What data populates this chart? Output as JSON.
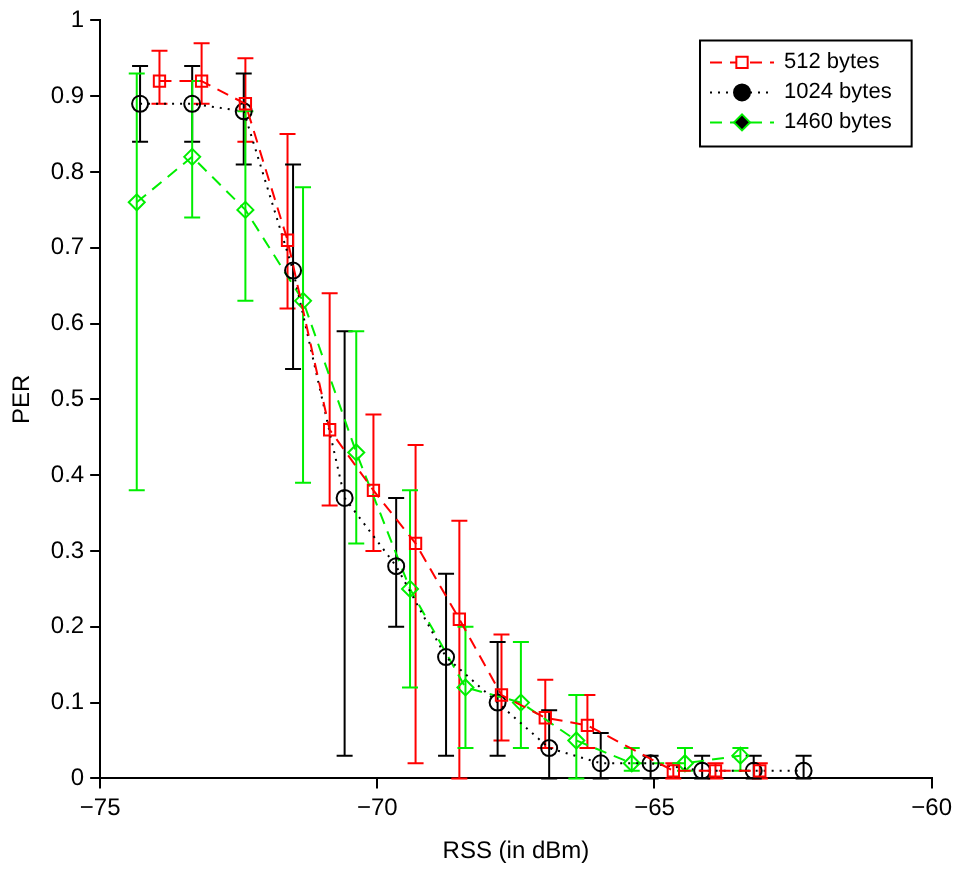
{
  "chart_data": {
    "type": "line",
    "xlabel": "RSS (in dBm)",
    "ylabel": "PER",
    "xlim": [
      -75,
      -60
    ],
    "ylim": [
      0,
      1
    ],
    "xticks": [
      -75,
      -70,
      -65,
      -60
    ],
    "yticks": [
      0,
      0.1,
      0.2,
      0.3,
      0.4,
      0.5,
      0.6,
      0.7,
      0.8,
      0.9,
      1
    ],
    "grid": false,
    "legend": "top right",
    "series": [
      {
        "name": "512 bytes",
        "color": "#ff0000",
        "marker": "square",
        "line_style": "dashed",
        "x": [
          -73.93,
          -73.17,
          -72.38,
          -71.62,
          -70.86,
          -70.07,
          -69.31,
          -68.52,
          -67.76,
          -66.97,
          -66.21,
          -64.66,
          -63.9,
          -63.1
        ],
        "values": [
          0.92,
          0.92,
          0.89,
          0.71,
          0.46,
          0.38,
          0.31,
          0.21,
          0.11,
          0.08,
          0.07,
          0.01,
          0.01,
          0.01
        ],
        "errors": [
          [
            0.89,
            0.96
          ],
          [
            0.89,
            0.97
          ],
          [
            0.84,
            0.95
          ],
          [
            0.62,
            0.85
          ],
          [
            0.36,
            0.64
          ],
          [
            0.3,
            0.48
          ],
          [
            0.02,
            0.44
          ],
          [
            0,
            0.34
          ],
          [
            0.05,
            0.19
          ],
          [
            0.04,
            0.13
          ],
          [
            0.04,
            0.11
          ],
          [
            0,
            0.02
          ],
          [
            0,
            0.02
          ],
          [
            0,
            0.02
          ]
        ]
      },
      {
        "name": "1024 bytes",
        "color": "#000000",
        "marker": "circle",
        "line_style": "dotted",
        "x": [
          -74.28,
          -73.34,
          -72.41,
          -71.52,
          -70.59,
          -69.66,
          -68.76,
          -67.83,
          -66.9,
          -65.97,
          -65.07,
          -64.14,
          -63.21,
          -62.31
        ],
        "values": [
          0.89,
          0.89,
          0.88,
          0.67,
          0.37,
          0.28,
          0.16,
          0.1,
          0.04,
          0.02,
          0.02,
          0.01,
          0.01,
          0.01
        ],
        "errors": [
          [
            0.84,
            0.94
          ],
          [
            0.84,
            0.94
          ],
          [
            0.81,
            0.93
          ],
          [
            0.54,
            0.81
          ],
          [
            0.03,
            0.59
          ],
          [
            0.2,
            0.37
          ],
          [
            0.03,
            0.27
          ],
          [
            0.03,
            0.18
          ],
          [
            0,
            0.09
          ],
          [
            0,
            0.06
          ],
          [
            0,
            0.03
          ],
          [
            0,
            0.03
          ],
          [
            0,
            0.03
          ],
          [
            0,
            0.03
          ]
        ]
      },
      {
        "name": "1460 bytes",
        "color": "#00ee00",
        "marker": "diamond",
        "line_style": "dashed",
        "x": [
          -74.34,
          -73.34,
          -72.38,
          -71.34,
          -70.38,
          -69.41,
          -68.41,
          -67.41,
          -66.41,
          -65.41,
          -64.45,
          -63.45
        ],
        "values": [
          0.76,
          0.82,
          0.75,
          0.63,
          0.43,
          0.25,
          0.12,
          0.1,
          0.05,
          0.02,
          0.02,
          0.03
        ],
        "errors": [
          [
            0.38,
            0.93
          ],
          [
            0.74,
            0.92
          ],
          [
            0.63,
            0.88
          ],
          [
            0.39,
            0.78
          ],
          [
            0.31,
            0.59
          ],
          [
            0.12,
            0.38
          ],
          [
            0.04,
            0.2
          ],
          [
            0.04,
            0.18
          ],
          [
            0,
            0.11
          ],
          [
            0.01,
            0.04
          ],
          [
            0.01,
            0.04
          ],
          [
            0.01,
            0.04
          ]
        ]
      }
    ]
  }
}
